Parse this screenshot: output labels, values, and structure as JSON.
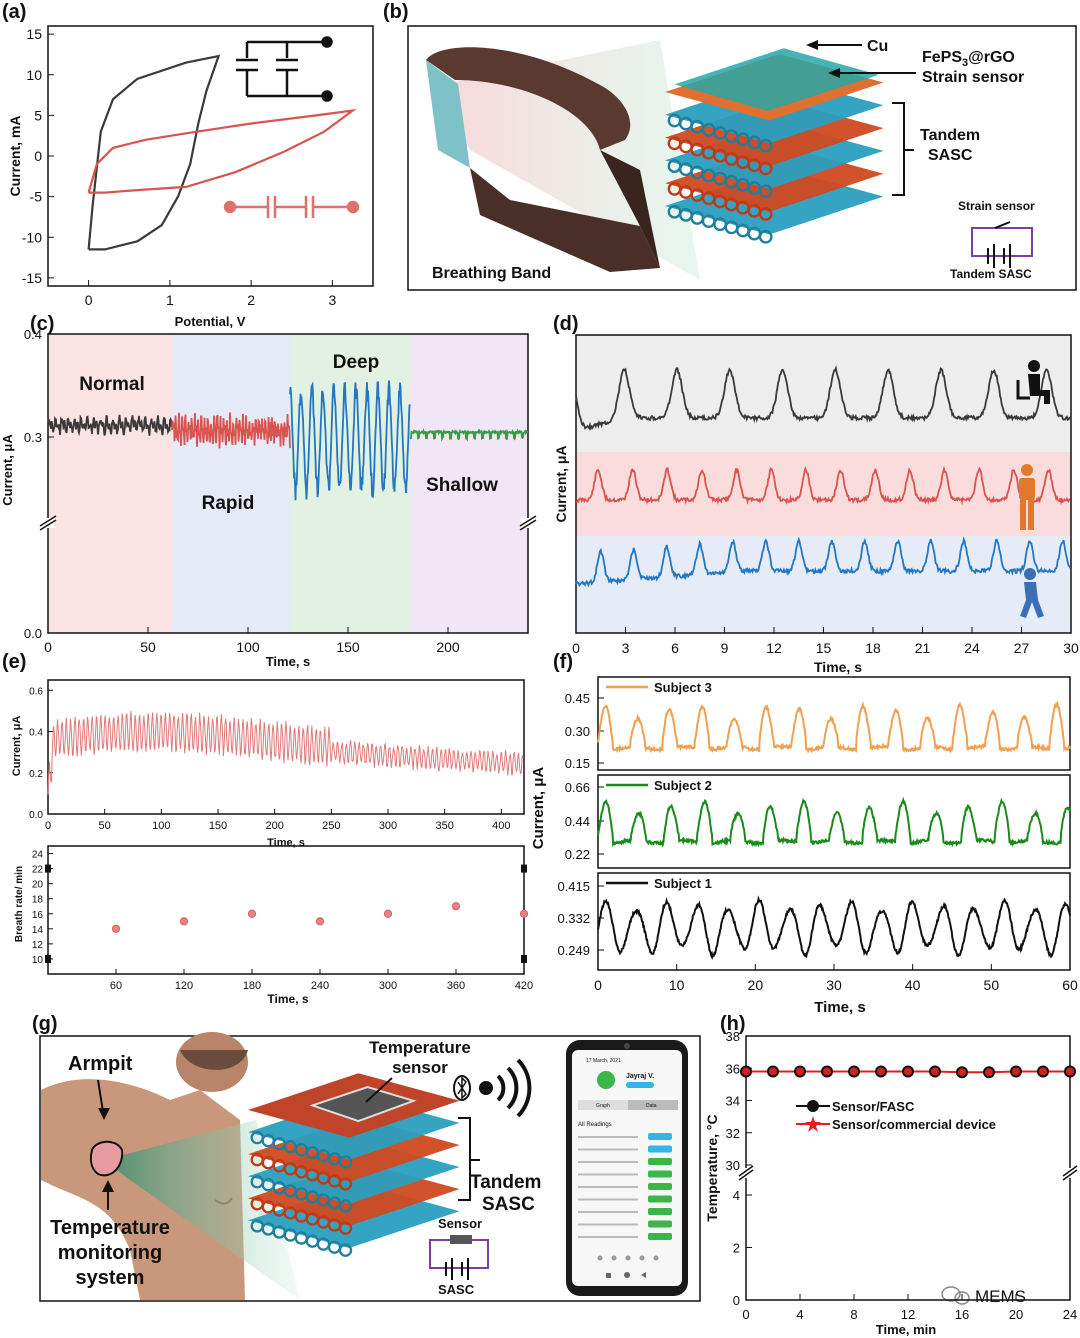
{
  "panels": {
    "a": "(a)",
    "b": "(b)",
    "c": "(c)",
    "d": "(d)",
    "e": "(e)",
    "f": "(f)",
    "g": "(g)",
    "h": "(h)"
  },
  "colors": {
    "red": "#d9534f",
    "black": "#3a3a3a",
    "blue": "#2277c4",
    "green": "#2f9e44",
    "orange": "#f0a050",
    "darkgreen": "#1a8a1a"
  },
  "panel_b": {
    "cu": "Cu",
    "fepsrgo_pre": "FePS",
    "fepsrgo_sub": "3",
    "fepsrgo_post": "@rGO",
    "strain": "Strain sensor",
    "tandem": "Tandem",
    "sasc": "SASC",
    "strain_small": "Strain sensor",
    "tandem_sasc_small": "Tandem  SASC",
    "band": "Breathing Band"
  },
  "panel_g": {
    "armpit": "Armpit",
    "temp_monitor_1": "Temperature",
    "temp_monitor_2": "monitoring",
    "temp_monitor_3": "system",
    "temp_sensor_1": "Temperature",
    "temp_sensor_2": "sensor",
    "tandem": "Tandem",
    "sasc": "SASC",
    "sensor_small": "Sensor",
    "sasc_small": "SASC",
    "phone_date": "17 March, 2021",
    "phone_user": "Jayraj V.",
    "phone_tab1": "Graph",
    "phone_tab2": "Data",
    "phone_readings": "All Readings",
    "watermark": "MEMS"
  },
  "chart_data": [
    {
      "id": "a",
      "type": "line",
      "xlabel": "Potential, V",
      "ylabel": "Current, mA",
      "xlim": [
        -0.5,
        3.5
      ],
      "ylim": [
        -16,
        16
      ],
      "xticks": [
        0,
        1,
        2,
        3
      ],
      "yticks": [
        -15,
        -10,
        -5,
        0,
        5,
        10,
        15
      ],
      "series": [
        {
          "name": "single",
          "color": "#3a3a3a",
          "points": [
            [
              0,
              -11.5
            ],
            [
              0.05,
              -6
            ],
            [
              0.15,
              3
            ],
            [
              0.3,
              7
            ],
            [
              0.6,
              9.5
            ],
            [
              1.2,
              11.5
            ],
            [
              1.6,
              12.3
            ],
            [
              1.45,
              8
            ],
            [
              1.35,
              4
            ],
            [
              1.25,
              -1
            ],
            [
              1.1,
              -5
            ],
            [
              0.9,
              -8.5
            ],
            [
              0.6,
              -10.5
            ],
            [
              0.2,
              -11.5
            ],
            [
              0,
              -11.5
            ]
          ]
        },
        {
          "name": "tandem",
          "color": "#d9534f",
          "points": [
            [
              0,
              -4.5
            ],
            [
              0.1,
              -1
            ],
            [
              0.3,
              1
            ],
            [
              0.7,
              2
            ],
            [
              1.2,
              2.8
            ],
            [
              2,
              4
            ],
            [
              2.8,
              5
            ],
            [
              3.25,
              5.6
            ],
            [
              2.9,
              3
            ],
            [
              2.4,
              0.5
            ],
            [
              1.8,
              -2
            ],
            [
              1.2,
              -3.8
            ],
            [
              0.6,
              -4.2
            ],
            [
              0.2,
              -4.5
            ],
            [
              0,
              -4.5
            ]
          ]
        }
      ]
    },
    {
      "id": "c",
      "type": "line",
      "xlabel": "Time, s",
      "ylabel": "Current, μA",
      "xlim": [
        0,
        240
      ],
      "xticks": [
        0,
        50,
        100,
        150,
        200
      ],
      "yticks": [
        "0.0",
        "0.3",
        "0.4"
      ],
      "regions": [
        {
          "label": "Normal",
          "from": 0,
          "to": 62,
          "color": "#fbe3e3"
        },
        {
          "label": "Rapid",
          "from": 62,
          "to": 121,
          "color": "#e6e9f7"
        },
        {
          "label": "Deep",
          "from": 121,
          "to": 181,
          "color": "#e2f1e2"
        },
        {
          "label": "Shallow",
          "from": 181,
          "to": 240,
          "color": "#f0e6f6"
        }
      ]
    },
    {
      "id": "d",
      "type": "line",
      "xlabel": "Time, s",
      "ylabel": "Current, μA",
      "xlim": [
        0,
        30
      ],
      "xticks": [
        0,
        3,
        6,
        9,
        12,
        15,
        18,
        21,
        24,
        27,
        30
      ],
      "series": [
        {
          "name": "sitting",
          "color": "#3a3a3a"
        },
        {
          "name": "standing",
          "color": "#d9534f"
        },
        {
          "name": "walking",
          "color": "#2277c4"
        }
      ]
    },
    {
      "id": "e1",
      "type": "line",
      "xlabel": "Time, s",
      "ylabel": "Current, μA",
      "xlim": [
        0,
        420
      ],
      "ylim": [
        0,
        0.65
      ],
      "xticks": [
        0,
        50,
        100,
        150,
        200,
        250,
        300,
        350,
        400
      ],
      "yticks": [
        "0.0",
        "0.2",
        "0.4",
        "0.6"
      ]
    },
    {
      "id": "e2",
      "type": "scatter",
      "xlabel": "Time, s",
      "ylabel": "Breath rate/ min",
      "xlim": [
        0,
        420
      ],
      "ylim": [
        8,
        25
      ],
      "xticks": [
        60,
        120,
        180,
        240,
        300,
        360,
        420
      ],
      "yticks": [
        10,
        12,
        14,
        16,
        18,
        20,
        22,
        24
      ],
      "x": [
        60,
        120,
        180,
        240,
        300,
        360,
        420
      ],
      "y": [
        14,
        15,
        16,
        15,
        16,
        17,
        16
      ]
    },
    {
      "id": "f",
      "type": "line",
      "xlabel": "Time, s",
      "ylabel": "Current, μA",
      "xlim": [
        0,
        60
      ],
      "xticks": [
        0,
        10,
        20,
        30,
        40,
        50,
        60
      ],
      "series": [
        {
          "name": "Subject 3",
          "color": "#f0a050",
          "yticks": [
            "0.45",
            "0.30",
            "0.15"
          ]
        },
        {
          "name": "Subject 2",
          "color": "#1a8a1a",
          "yticks": [
            "0.66",
            "0.44",
            "0.22"
          ]
        },
        {
          "name": "Subject 1",
          "color": "#111111",
          "yticks": [
            "0.415",
            "0.332",
            "0.249"
          ]
        }
      ]
    },
    {
      "id": "h",
      "type": "scatter",
      "xlabel": "Time, min",
      "ylabel": "Temperature, °C",
      "xlim": [
        0,
        24
      ],
      "xticks": [
        0,
        4,
        8,
        12,
        16,
        20,
        24
      ],
      "yticks_top": [
        30,
        32,
        34,
        36,
        38
      ],
      "yticks_bottom": [
        0,
        2,
        4
      ],
      "series": [
        {
          "name": "Sensor/FASC",
          "color": "#111111",
          "marker": "circle"
        },
        {
          "name": "Sensor/commercial device",
          "color": "#e02020",
          "marker": "star"
        }
      ],
      "x": [
        0,
        2,
        4,
        6,
        8,
        10,
        12,
        14,
        16,
        18,
        20,
        22,
        24
      ],
      "y": [
        35.8,
        35.8,
        35.8,
        35.8,
        35.8,
        35.8,
        35.8,
        35.8,
        35.75,
        35.75,
        35.8,
        35.8,
        35.8
      ]
    }
  ]
}
